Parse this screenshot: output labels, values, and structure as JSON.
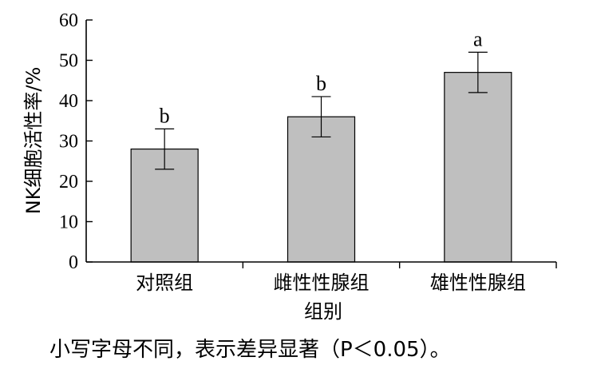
{
  "chart_data": {
    "type": "bar",
    "categories": [
      "对照组",
      "雌性性腺组",
      "雄性性腺组"
    ],
    "values": [
      28,
      36,
      47
    ],
    "errors": [
      5,
      5,
      5
    ],
    "significance": [
      "b",
      "b",
      "a"
    ],
    "xlabel": "组别",
    "ylabel": "NK细胞活性率/%",
    "ylim": [
      0,
      60
    ],
    "yticks": [
      0,
      10,
      20,
      30,
      40,
      50,
      60
    ],
    "bar_color": "#bfbfbf",
    "grid": false
  },
  "footnote": "小写字母不同，表示差异显著（P＜0.05）。"
}
